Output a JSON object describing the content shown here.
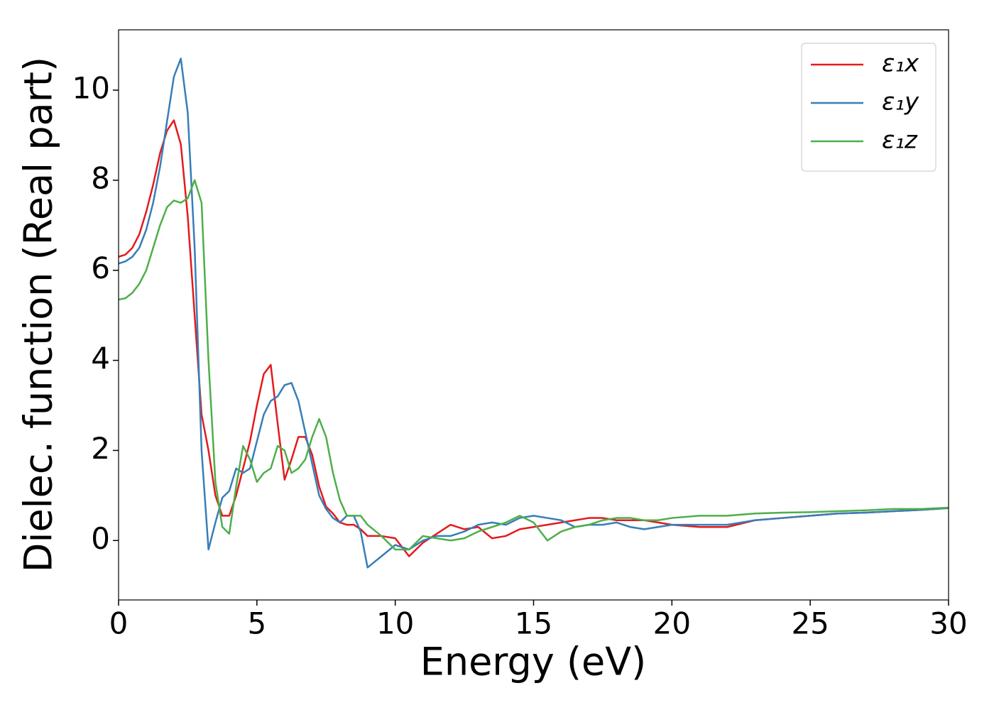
{
  "chart_data": {
    "type": "line",
    "xlabel": "Energy (eV)",
    "ylabel": "Dielec. function (Real part)",
    "xlim": [
      0,
      30
    ],
    "ylim": [
      -1.32,
      11.34
    ],
    "xticks": [
      0,
      5,
      10,
      15,
      20,
      25,
      30
    ],
    "yticks": [
      0,
      2,
      4,
      6,
      8,
      10
    ],
    "legend": "upper right",
    "x": [
      0,
      0.25,
      0.5,
      0.75,
      1.0,
      1.25,
      1.5,
      1.75,
      2.0,
      2.25,
      2.5,
      2.75,
      3.0,
      3.25,
      3.5,
      3.75,
      4.0,
      4.25,
      4.5,
      4.75,
      5.0,
      5.25,
      5.5,
      5.75,
      6.0,
      6.25,
      6.5,
      6.75,
      7.0,
      7.25,
      7.5,
      7.75,
      8.0,
      8.25,
      8.5,
      8.75,
      9.0,
      9.5,
      10,
      10.5,
      11,
      11.5,
      12,
      12.5,
      13,
      13.5,
      14,
      14.5,
      15,
      15.5,
      16,
      16.5,
      17,
      17.5,
      18,
      18.5,
      19,
      19.5,
      20,
      21,
      22,
      23,
      24,
      25,
      26,
      27,
      28,
      29,
      30
    ],
    "series": [
      {
        "name": "ε₁x",
        "color": "#e41a1c",
        "values": [
          6.3,
          6.35,
          6.5,
          6.8,
          7.3,
          7.9,
          8.6,
          9.1,
          9.33,
          8.8,
          7.2,
          5.0,
          2.8,
          2.0,
          1.0,
          0.55,
          0.55,
          1.0,
          1.6,
          2.2,
          3.0,
          3.7,
          3.9,
          2.6,
          1.35,
          1.8,
          2.3,
          2.3,
          1.9,
          1.2,
          0.75,
          0.6,
          0.4,
          0.35,
          0.35,
          0.25,
          0.1,
          0.1,
          0.05,
          -0.35,
          -0.05,
          0.15,
          0.35,
          0.25,
          0.3,
          0.05,
          0.1,
          0.25,
          0.3,
          0.35,
          0.4,
          0.45,
          0.5,
          0.5,
          0.45,
          0.45,
          0.45,
          0.4,
          0.35,
          0.3,
          0.3,
          0.45,
          0.5,
          0.55,
          0.6,
          0.62,
          0.65,
          0.68,
          0.72
        ]
      },
      {
        "name": "ε₁y",
        "color": "#377eb8",
        "values": [
          6.15,
          6.2,
          6.3,
          6.5,
          6.9,
          7.5,
          8.3,
          9.3,
          10.3,
          10.7,
          9.5,
          6.5,
          2.0,
          -0.2,
          0.4,
          0.95,
          1.1,
          1.6,
          1.5,
          1.6,
          2.2,
          2.8,
          3.1,
          3.2,
          3.45,
          3.5,
          3.1,
          2.4,
          1.7,
          1.0,
          0.7,
          0.5,
          0.4,
          0.55,
          0.55,
          0.2,
          -0.6,
          -0.35,
          -0.1,
          -0.2,
          0.0,
          0.1,
          0.1,
          0.2,
          0.35,
          0.4,
          0.35,
          0.5,
          0.55,
          0.5,
          0.45,
          0.3,
          0.35,
          0.35,
          0.4,
          0.3,
          0.25,
          0.3,
          0.35,
          0.35,
          0.35,
          0.45,
          0.5,
          0.55,
          0.6,
          0.62,
          0.65,
          0.68,
          0.72
        ]
      },
      {
        "name": "ε₁z",
        "color": "#4daf4a",
        "values": [
          5.35,
          5.38,
          5.5,
          5.7,
          6.0,
          6.5,
          7.0,
          7.4,
          7.55,
          7.5,
          7.6,
          8.0,
          7.5,
          4.0,
          1.3,
          0.3,
          0.15,
          1.2,
          2.1,
          1.8,
          1.3,
          1.5,
          1.6,
          2.1,
          2.0,
          1.5,
          1.6,
          1.8,
          2.3,
          2.7,
          2.3,
          1.5,
          0.9,
          0.55,
          0.55,
          0.55,
          0.35,
          0.1,
          -0.2,
          -0.2,
          0.1,
          0.05,
          0.0,
          0.05,
          0.2,
          0.3,
          0.4,
          0.55,
          0.4,
          0.0,
          0.2,
          0.3,
          0.35,
          0.45,
          0.5,
          0.5,
          0.45,
          0.45,
          0.5,
          0.55,
          0.55,
          0.6,
          0.62,
          0.63,
          0.65,
          0.67,
          0.7,
          0.7,
          0.73
        ]
      }
    ]
  }
}
